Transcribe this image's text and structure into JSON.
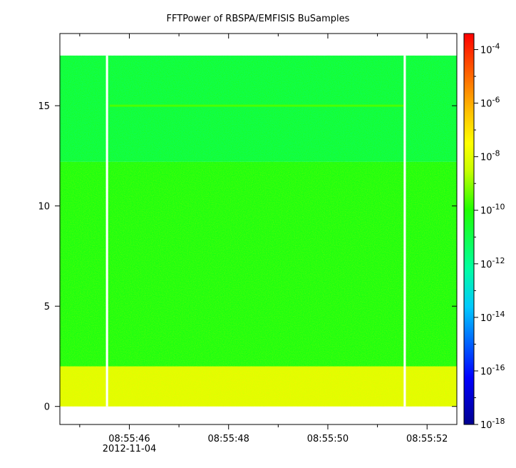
{
  "chart_data": {
    "type": "heatmap",
    "title": "FFTPower of RBSPA/EMFISIS  BuSamples",
    "xlabel": "",
    "ylabel": "",
    "x_ticks": [
      {
        "value": 46,
        "label": "08:55:46",
        "sublabel": "2012-11-04"
      },
      {
        "value": 48,
        "label": "08:55:48",
        "sublabel": ""
      },
      {
        "value": 50,
        "label": "08:55:50",
        "sublabel": ""
      },
      {
        "value": 52,
        "label": "08:55:52",
        "sublabel": ""
      }
    ],
    "x_minor_ticks": [
      45,
      47,
      49,
      51
    ],
    "xlim": [
      44.6,
      52.6
    ],
    "y_ticks": [
      0,
      5,
      10,
      15
    ],
    "ylim": [
      -0.9,
      18.6
    ],
    "data_extent_y": [
      0,
      17.5
    ],
    "gaps_x": [
      45.55,
      51.55
    ],
    "gap_width_x": 0.045,
    "bands": [
      {
        "y": [
          0,
          2.0
        ],
        "log_power": -8.1
      },
      {
        "y": [
          2.0,
          12.2
        ],
        "log_power": -10.2
      },
      {
        "y": [
          12.2,
          17.5
        ],
        "log_power": -11.0
      }
    ],
    "line_feature": {
      "y": 15.0,
      "x": [
        45.6,
        51.55
      ],
      "log_power": -9.6
    },
    "colorbar": {
      "scale": "log",
      "range_exp": [
        -18,
        -3.4
      ],
      "tick_exponents": [
        -4,
        -6,
        -8,
        -10,
        -12,
        -14,
        -16,
        -18
      ],
      "tick_base": "10",
      "colormap": "rainbow"
    }
  }
}
